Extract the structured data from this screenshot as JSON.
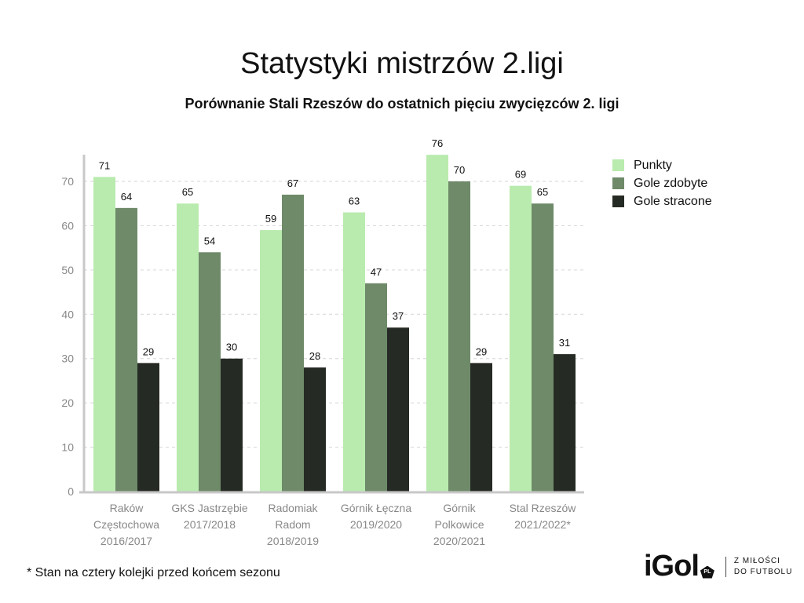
{
  "title": "Statystyki mistrzów 2.ligi",
  "subtitle": "Porównanie Stali Rzeszów do ostatnich pięciu zwycięzców 2. ligi",
  "footnote": "* Stan na cztery kolejki przed końcem sezonu",
  "logo": {
    "word": "iGol",
    "badge": "PL",
    "tagline_1": "Z MIŁOŚCI",
    "tagline_2": "DO FUTBOLU"
  },
  "chart_data": {
    "type": "bar",
    "title": "Statystyki mistrzów 2.ligi",
    "subtitle": "Porównanie Stali Rzeszów do ostatnich pięciu zwycięzców 2. ligi",
    "xlabel": "",
    "ylabel": "",
    "ylim": [
      0,
      76
    ],
    "yticks": [
      0,
      10,
      20,
      30,
      40,
      50,
      60,
      70
    ],
    "grid": true,
    "legend_position": "right",
    "categories": [
      [
        "Raków",
        "Częstochowa",
        "2016/2017"
      ],
      [
        "GKS Jastrzębie",
        "2017/2018"
      ],
      [
        "Radomiak",
        "Radom",
        "2018/2019"
      ],
      [
        "Górnik Łęczna",
        "2019/2020"
      ],
      [
        "Górnik",
        "Polkowice",
        "2020/2021"
      ],
      [
        "Stal Rzeszów",
        "2021/2022*"
      ]
    ],
    "series": [
      {
        "name": "Punkty",
        "color": "#b9ebae",
        "values": [
          71,
          65,
          59,
          63,
          76,
          69
        ]
      },
      {
        "name": "Gole zdobyte",
        "color": "#6e8a69",
        "values": [
          64,
          54,
          67,
          47,
          70,
          65
        ]
      },
      {
        "name": "Gole stracone",
        "color": "#262a24",
        "values": [
          29,
          30,
          28,
          37,
          29,
          31
        ]
      }
    ]
  }
}
